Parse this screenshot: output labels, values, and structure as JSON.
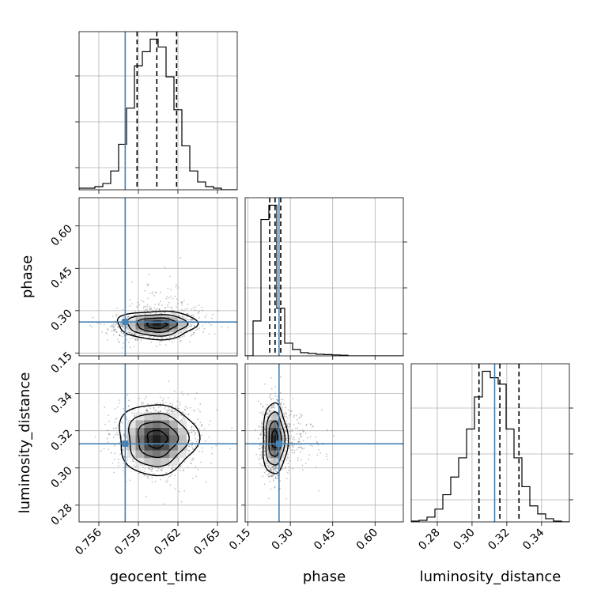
{
  "chart_data": {
    "type": "corner",
    "parameters": [
      "geocent_time",
      "phase",
      "luminosity_distance"
    ],
    "truths": [
      0.758,
      0.26,
      0.313
    ],
    "truth_color": "#4682b4",
    "grid": true,
    "diagonal": [
      {
        "parameter": "geocent_time",
        "xlim": [
          0.7545,
          0.7665
        ],
        "xticks": [
          0.756,
          0.759,
          0.762,
          0.765
        ],
        "xtick_labels": [
          "0.756",
          "0.759",
          "0.762",
          "0.765"
        ],
        "bin_edges": [
          0.7545,
          0.7551,
          0.7557,
          0.7563,
          0.7569,
          0.7575,
          0.7581,
          0.7587,
          0.7593,
          0.7599,
          0.7605,
          0.7611,
          0.7617,
          0.7623,
          0.7629,
          0.7635,
          0.7641,
          0.7647,
          0.7653,
          0.7659,
          0.7665
        ],
        "counts": [
          0.01,
          0.01,
          0.02,
          0.04,
          0.12,
          0.29,
          0.52,
          0.79,
          0.88,
          0.96,
          0.91,
          0.72,
          0.51,
          0.28,
          0.12,
          0.05,
          0.02,
          0.01,
          0.0,
          0.0
        ],
        "quantiles": [
          0.7589,
          0.7604,
          0.7619
        ],
        "truth_value": 0.758
      },
      {
        "parameter": "phase",
        "xlim": [
          0.14,
          0.7
        ],
        "xticks": [
          0.15,
          0.3,
          0.45,
          0.6
        ],
        "xtick_labels": [
          "0.15",
          "0.30",
          "0.45",
          "0.60"
        ],
        "bin_edges": [
          0.14,
          0.168,
          0.196,
          0.224,
          0.252,
          0.28,
          0.308,
          0.336,
          0.364,
          0.392,
          0.42,
          0.448,
          0.476,
          0.504,
          0.532,
          0.56,
          0.588,
          0.616,
          0.644,
          0.672,
          0.7
        ],
        "counts": [
          0.0,
          0.22,
          0.86,
          0.95,
          0.3,
          0.08,
          0.04,
          0.02,
          0.015,
          0.01,
          0.008,
          0.006,
          0.004,
          0.0,
          0.0,
          0.0,
          0.0,
          0.0,
          0.0,
          0.0
        ],
        "quantiles": [
          0.227,
          0.246,
          0.266
        ],
        "truth_value": 0.26
      },
      {
        "parameter": "luminosity_distance",
        "xlim": [
          0.265,
          0.356
        ],
        "xticks": [
          0.28,
          0.3,
          0.32,
          0.34
        ],
        "xtick_labels": [
          "0.28",
          "0.30",
          "0.32",
          "0.34"
        ],
        "bin_edges": [
          0.265,
          0.26955,
          0.2741,
          0.27865,
          0.2832,
          0.28775,
          0.2923,
          0.29685,
          0.3014,
          0.30595,
          0.3105,
          0.31505,
          0.3196,
          0.32415,
          0.3287,
          0.33325,
          0.3378,
          0.34235,
          0.3469,
          0.35145,
          0.356
        ],
        "counts": [
          0.005,
          0.01,
          0.03,
          0.08,
          0.17,
          0.28,
          0.4,
          0.58,
          0.78,
          0.94,
          0.9,
          0.86,
          0.58,
          0.4,
          0.22,
          0.1,
          0.05,
          0.02,
          0.005,
          0.0
        ],
        "quantiles": [
          0.304,
          0.316,
          0.327
        ],
        "truth_value": 0.313
      }
    ],
    "off_diagonal": [
      {
        "x_parameter": "geocent_time",
        "y_parameter": "phase",
        "xlim": [
          0.7545,
          0.7665
        ],
        "ylim": [
          0.14,
          0.7
        ],
        "yticks": [
          0.15,
          0.3,
          0.45,
          0.6
        ],
        "ytick_labels": [
          "0.15",
          "0.30",
          "0.45",
          "0.60"
        ],
        "mean": [
          0.7604,
          0.25
        ],
        "std": [
          0.0015,
          0.025
        ],
        "correlation": 0.25,
        "skew_y": "upper tail",
        "contour_levels_sigma": [
          0.5,
          1.0,
          1.5,
          2.0
        ]
      },
      {
        "x_parameter": "geocent_time",
        "y_parameter": "luminosity_distance",
        "xlim": [
          0.7545,
          0.7665
        ],
        "ylim": [
          0.271,
          0.356
        ],
        "yticks": [
          0.28,
          0.3,
          0.32,
          0.34
        ],
        "ytick_labels": [
          "0.28",
          "0.30",
          "0.32",
          "0.34"
        ],
        "mean": [
          0.7604,
          0.3155
        ],
        "std": [
          0.0015,
          0.0095
        ],
        "correlation": 0.0,
        "contour_levels_sigma": [
          0.5,
          1.0,
          1.5,
          2.0
        ]
      },
      {
        "x_parameter": "phase",
        "y_parameter": "luminosity_distance",
        "xlim": [
          0.14,
          0.7
        ],
        "ylim": [
          0.271,
          0.356
        ],
        "mean": [
          0.245,
          0.3155
        ],
        "std": [
          0.022,
          0.0095
        ],
        "correlation": 0.0,
        "skew_x": "upper tail",
        "contour_levels_sigma": [
          0.5,
          1.0,
          1.5,
          2.0
        ]
      }
    ],
    "axis_labels": {
      "x": [
        "geocent_time",
        "phase",
        "luminosity_distance"
      ],
      "y": [
        "phase",
        "luminosity_distance"
      ]
    }
  }
}
